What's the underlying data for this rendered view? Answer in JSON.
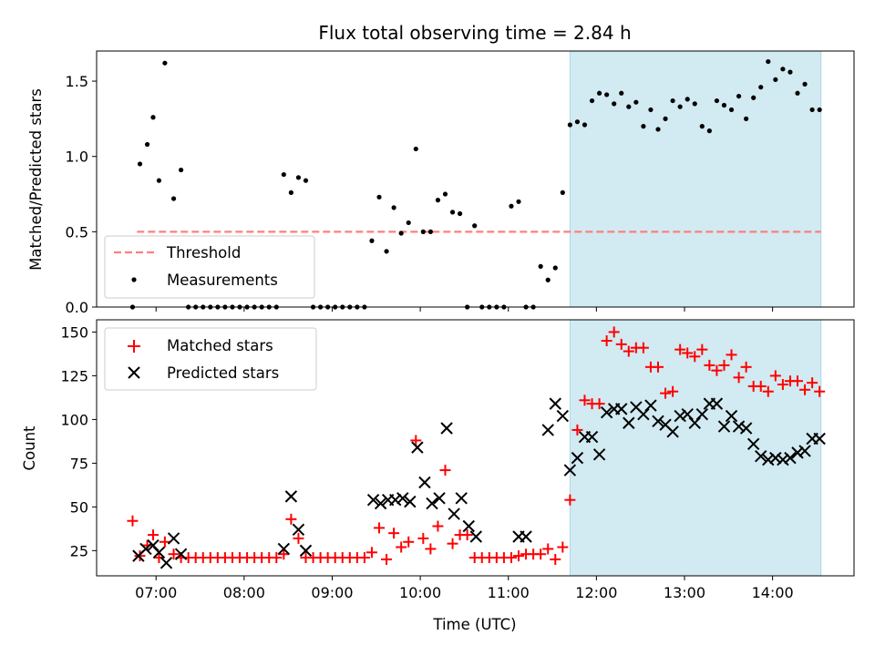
{
  "chart_data": {
    "title": "Flux total observing time = 2.84 h",
    "xlabel": "Time (UTC)",
    "x_ticks": [
      "07:00",
      "08:00",
      "09:00",
      "10:00",
      "11:00",
      "12:00",
      "13:00",
      "14:00"
    ],
    "colors": {
      "shade": "#add8e6",
      "threshold": "#ff7f7f",
      "matched": "#ff0000",
      "predicted": "#000000",
      "measurements": "#000000"
    },
    "shaded_region": {
      "start": "11:42",
      "end": "14:33"
    },
    "panels": [
      {
        "type": "scatter",
        "ylabel": "Matched/Predicted stars",
        "ylim": [
          0,
          1.7
        ],
        "y_ticks": [
          0.0,
          0.5,
          1.0,
          1.5
        ],
        "y_tick_labels": [
          "0.0",
          "0.5",
          "1.0",
          "1.5"
        ],
        "legend_position": "lower-left",
        "threshold": {
          "name": "Threshold",
          "value": 0.5,
          "x_start": "06:47",
          "x_end": "14:33"
        },
        "series": [
          {
            "name": "Measurements",
            "x": [
              "06:44",
              "06:49",
              "06:54",
              "06:58",
              "07:02",
              "07:06",
              "07:12",
              "07:17",
              "07:22",
              "07:27",
              "07:32",
              "07:37",
              "07:42",
              "07:47",
              "07:52",
              "07:57",
              "08:02",
              "08:07",
              "08:12",
              "08:17",
              "08:22",
              "08:27",
              "08:32",
              "08:37",
              "08:42",
              "08:47",
              "08:52",
              "08:57",
              "09:02",
              "09:07",
              "09:12",
              "09:17",
              "09:22",
              "09:27",
              "09:32",
              "09:37",
              "09:42",
              "09:47",
              "09:52",
              "09:57",
              "10:02",
              "10:07",
              "10:12",
              "10:17",
              "10:22",
              "10:27",
              "10:32",
              "10:37",
              "10:42",
              "10:47",
              "10:52",
              "10:57",
              "11:02",
              "11:07",
              "11:12",
              "11:17",
              "11:22",
              "11:27",
              "11:32",
              "11:37",
              "11:42",
              "11:47",
              "11:52",
              "11:57",
              "12:02",
              "12:07",
              "12:12",
              "12:17",
              "12:22",
              "12:27",
              "12:32",
              "12:37",
              "12:42",
              "12:47",
              "12:52",
              "12:57",
              "13:02",
              "13:07",
              "13:12",
              "13:17",
              "13:22",
              "13:27",
              "13:32",
              "13:37",
              "13:42",
              "13:47",
              "13:52",
              "13:57",
              "14:02",
              "14:07",
              "14:12",
              "14:17",
              "14:22",
              "14:27",
              "14:32"
            ],
            "y": [
              0.0,
              0.95,
              1.08,
              1.26,
              0.84,
              1.62,
              0.72,
              0.91,
              0.0,
              0.0,
              0.0,
              0.0,
              0.0,
              0.0,
              0.0,
              0.0,
              0.0,
              0.0,
              0.0,
              0.0,
              0.0,
              0.88,
              0.76,
              0.86,
              0.84,
              0.0,
              0.0,
              0.0,
              0.0,
              0.0,
              0.0,
              0.0,
              0.0,
              0.44,
              0.73,
              0.37,
              0.66,
              0.49,
              0.56,
              1.05,
              0.5,
              0.5,
              0.71,
              0.75,
              0.63,
              0.62,
              0.0,
              0.54,
              0.0,
              0.0,
              0.0,
              0.0,
              0.67,
              0.7,
              0.0,
              0.0,
              0.27,
              0.18,
              0.26,
              0.76,
              1.21,
              1.23,
              1.21,
              1.37,
              1.42,
              1.41,
              1.35,
              1.42,
              1.33,
              1.36,
              1.2,
              1.31,
              1.18,
              1.25,
              1.37,
              1.33,
              1.38,
              1.35,
              1.2,
              1.17,
              1.37,
              1.34,
              1.31,
              1.4,
              1.25,
              1.39,
              1.46,
              1.63,
              1.51,
              1.58,
              1.56,
              1.42,
              1.48,
              1.31,
              1.31
            ]
          }
        ]
      },
      {
        "type": "scatter",
        "ylabel": "Count",
        "ylim": [
          10.6,
          157
        ],
        "y_ticks": [
          25,
          50,
          75,
          100,
          125,
          150
        ],
        "y_tick_labels": [
          "25",
          "50",
          "75",
          "100",
          "125",
          "150"
        ],
        "legend_position": "upper-left",
        "series": [
          {
            "name": "Matched stars",
            "marker": "plus",
            "x": [
              "06:44",
              "06:49",
              "06:54",
              "06:58",
              "07:02",
              "07:06",
              "07:12",
              "07:17",
              "07:22",
              "07:27",
              "07:32",
              "07:37",
              "07:42",
              "07:47",
              "07:52",
              "07:57",
              "08:02",
              "08:07",
              "08:12",
              "08:17",
              "08:22",
              "08:27",
              "08:32",
              "08:37",
              "08:42",
              "08:47",
              "08:52",
              "08:57",
              "09:02",
              "09:07",
              "09:12",
              "09:17",
              "09:22",
              "09:27",
              "09:32",
              "09:37",
              "09:42",
              "09:47",
              "09:52",
              "09:57",
              "10:02",
              "10:07",
              "10:12",
              "10:17",
              "10:22",
              "10:27",
              "10:32",
              "10:37",
              "10:42",
              "10:47",
              "10:52",
              "10:57",
              "11:02",
              "11:07",
              "11:12",
              "11:17",
              "11:22",
              "11:27",
              "11:32",
              "11:37",
              "11:42",
              "11:47",
              "11:52",
              "11:57",
              "12:02",
              "12:07",
              "12:12",
              "12:17",
              "12:22",
              "12:27",
              "12:32",
              "12:37",
              "12:42",
              "12:47",
              "12:52",
              "12:57",
              "13:02",
              "13:07",
              "13:12",
              "13:17",
              "13:22",
              "13:27",
              "13:32",
              "13:37",
              "13:42",
              "13:47",
              "13:52",
              "13:57",
              "14:02",
              "14:07",
              "14:12",
              "14:17",
              "14:22",
              "14:27",
              "14:32"
            ],
            "y": [
              42,
              22,
              28,
              34,
              21,
              30,
              23,
              21,
              21,
              21,
              21,
              21,
              21,
              21,
              21,
              21,
              21,
              21,
              21,
              21,
              21,
              23,
              43,
              32,
              21,
              21,
              21,
              21,
              21,
              21,
              21,
              21,
              21,
              24,
              38,
              20,
              35,
              27,
              30,
              88,
              32,
              26,
              39,
              71,
              29,
              34,
              34,
              21,
              21,
              21,
              21,
              21,
              21,
              22,
              23,
              23,
              23,
              26,
              20,
              27,
              54,
              94,
              111,
              109,
              109,
              145,
              150,
              143,
              139,
              141,
              141,
              130,
              130,
              115,
              116,
              140,
              138,
              136,
              140,
              131,
              128,
              131,
              137,
              124,
              130,
              119,
              119,
              116,
              125,
              120,
              122,
              122,
              117,
              121,
              116
            ]
          },
          {
            "name": "Predicted stars",
            "marker": "x",
            "x": [
              "06:48",
              "06:53",
              "06:58",
              "07:02",
              "07:07",
              "07:12",
              "07:17",
              "08:27",
              "08:32",
              "08:37",
              "08:42",
              "09:28",
              "09:33",
              "09:38",
              "09:43",
              "09:48",
              "09:53",
              "09:58",
              "10:03",
              "10:08",
              "10:13",
              "10:18",
              "10:23",
              "10:28",
              "10:33",
              "10:38",
              "11:07",
              "11:12",
              "11:27",
              "11:32",
              "11:37",
              "11:42",
              "11:47",
              "11:52",
              "11:57",
              "12:02",
              "12:07",
              "12:12",
              "12:17",
              "12:22",
              "12:27",
              "12:32",
              "12:37",
              "12:42",
              "12:47",
              "12:52",
              "12:57",
              "13:02",
              "13:07",
              "13:12",
              "13:17",
              "13:22",
              "13:27",
              "13:32",
              "13:37",
              "13:42",
              "13:47",
              "13:52",
              "13:57",
              "14:02",
              "14:07",
              "14:12",
              "14:17",
              "14:22",
              "14:27",
              "14:32"
            ],
            "y": [
              22,
              26,
              28,
              24,
              18,
              32,
              23,
              26,
              56,
              37,
              25,
              54,
              52,
              54,
              54,
              55,
              53,
              84,
              64,
              52,
              55,
              95,
              46,
              55,
              39,
              33,
              33,
              33,
              94,
              109,
              102,
              71,
              78,
              90,
              90,
              80,
              104,
              106,
              106,
              98,
              107,
              103,
              108,
              99,
              97,
              93,
              102,
              103,
              98,
              103,
              109,
              109,
              96,
              102,
              96,
              95,
              86,
              79,
              77,
              78,
              77,
              78,
              81,
              82,
              89,
              89
            ]
          }
        ]
      }
    ]
  }
}
